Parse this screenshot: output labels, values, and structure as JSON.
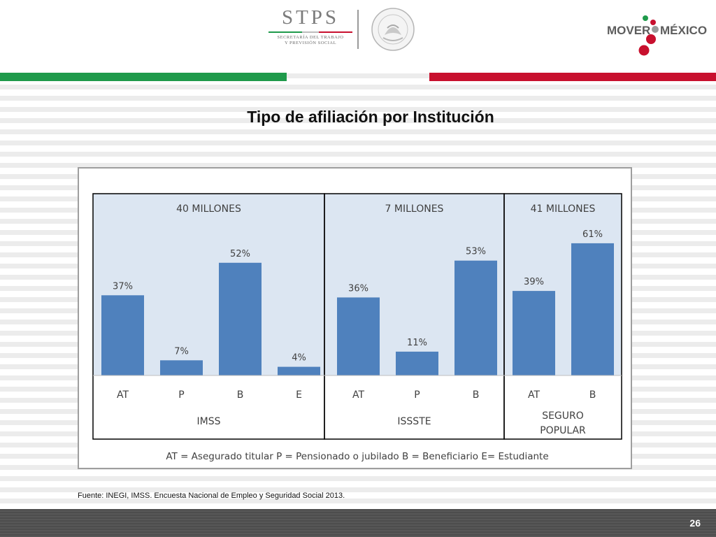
{
  "header": {
    "stps_logo": {
      "word": "STPS",
      "sub_line_1": "SECRETARÍA DEL TRABAJO",
      "sub_line_2": "Y PREVISIÓN SOCIAL"
    },
    "seal_text": "ESTADOS UNIDOS MEXICANOS",
    "mover_mexico": {
      "left": "MOVER",
      "right": "MÉXICO"
    }
  },
  "slide": {
    "title": "Tipo de afiliación por Institución"
  },
  "chart_data": {
    "type": "bar",
    "y_unit": "%",
    "ylim": [
      0,
      70
    ],
    "grid": false,
    "groups": [
      {
        "name": "IMSS",
        "total": "40 MILLONES",
        "categories": [
          "AT",
          "P",
          "B",
          "E"
        ],
        "values": [
          37,
          7,
          52,
          4
        ],
        "labels": [
          "37%",
          "7%",
          "52%",
          "4%"
        ]
      },
      {
        "name": "ISSSTE",
        "total": "7 MILLONES",
        "categories": [
          "AT",
          "P",
          "B"
        ],
        "values": [
          36,
          11,
          53
        ],
        "labels": [
          "36%",
          "11%",
          "53%"
        ]
      },
      {
        "name": "SEGURO POPULAR",
        "name_lines": [
          "SEGURO",
          "POPULAR"
        ],
        "total": "41 MILLONES",
        "categories": [
          "AT",
          "B"
        ],
        "values": [
          39,
          61
        ],
        "labels": [
          "39%",
          "61%"
        ]
      }
    ],
    "legend": "AT = Asegurado titular    P = Pensionado o jubilado    B = Beneficiario    E= Estudiante",
    "colors": {
      "bar": "#4f81bd",
      "plot_bg": "#dce6f2",
      "border": "#000000",
      "text": "#404040"
    }
  },
  "footnote": "Fuente: INEGI, IMSS. Encuesta Nacional de Empleo y Seguridad Social 2013.",
  "page_number": "26"
}
